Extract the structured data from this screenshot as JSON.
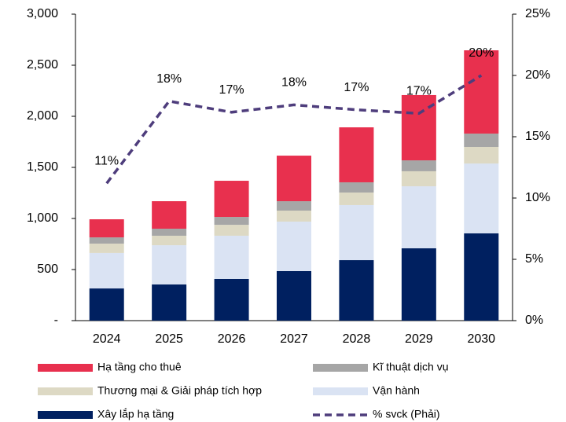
{
  "chart_data": {
    "type": "bar",
    "stacked": true,
    "categories": [
      "2024",
      "2025",
      "2026",
      "2027",
      "2028",
      "2029",
      "2030"
    ],
    "series": [
      {
        "name": "Xây lắp hạ tầng",
        "color": "#002060",
        "values": [
          315,
          354,
          408,
          485,
          592,
          708,
          854
        ]
      },
      {
        "name": "Vận hành",
        "color": "#dae3f3",
        "values": [
          347,
          384,
          423,
          484,
          539,
          607,
          684
        ]
      },
      {
        "name": "Thương mại & Giải pháp tích hợp",
        "color": "#ddd9c4",
        "values": [
          92,
          93,
          107,
          108,
          123,
          147,
          162
        ]
      },
      {
        "name": "Kĩ thuật dịch vụ",
        "color": "#a6a6a6",
        "values": [
          61,
          69,
          77,
          92,
          100,
          107,
          131
        ]
      },
      {
        "name": "Hạ tầng cho thuê",
        "color": "#e8304e",
        "values": [
          177,
          269,
          354,
          446,
          538,
          639,
          815
        ]
      },
      {
        "name": "% svck (Phải)",
        "color": "#4e3d7c",
        "type": "line",
        "dashed": true,
        "axis": "y2",
        "values": [
          11.2,
          17.9,
          17.0,
          17.6,
          17.2,
          16.9,
          20.0
        ],
        "value_labels": [
          "11%",
          "18%",
          "17%",
          "18%",
          "17%",
          "17%",
          "20%"
        ]
      }
    ],
    "ylim": [
      0,
      3000
    ],
    "yticks": [
      {
        "value": 0,
        "label": "-"
      },
      500,
      {
        "value": 1000,
        "label": "1,000"
      },
      {
        "value": 1500,
        "label": "1,500"
      },
      {
        "value": 2000,
        "label": "2,000"
      },
      {
        "value": 2500,
        "label": "2,500"
      },
      {
        "value": 3000,
        "label": "3,000"
      }
    ],
    "y2lim": [
      0,
      25
    ],
    "y2ticks": [
      {
        "value": 0,
        "label": "0%"
      },
      {
        "value": 5,
        "label": "5%"
      },
      {
        "value": 10,
        "label": "10%"
      },
      {
        "value": 15,
        "label": "15%"
      },
      {
        "value": 20,
        "label": "20%"
      },
      {
        "value": 25,
        "label": "25%"
      }
    ],
    "grid": false,
    "legend": "bottom"
  }
}
